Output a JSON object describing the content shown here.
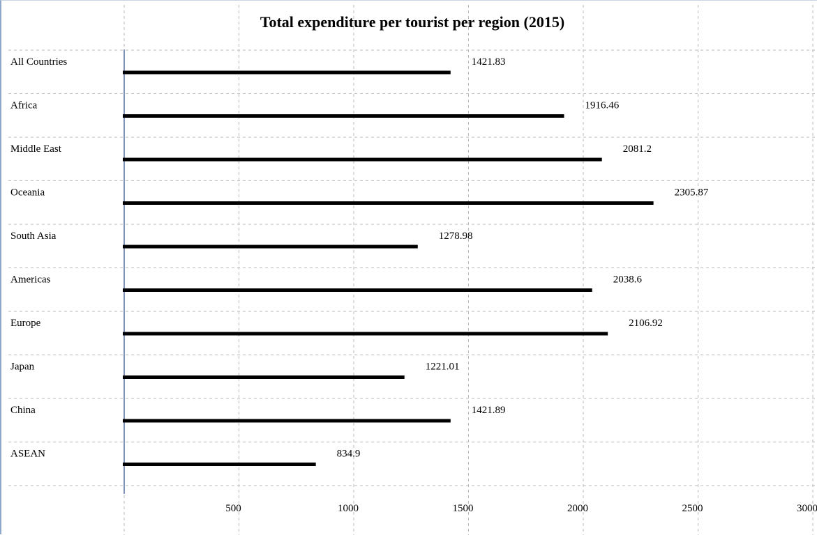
{
  "chart_data": {
    "type": "bar",
    "orientation": "horizontal",
    "title": "Total expenditure per tourist per region (2015)",
    "xlabel": "",
    "ylabel": "",
    "categories": [
      "All Countries",
      "Africa",
      "Middle East",
      "Oceania",
      "South Asia",
      "Americas",
      "Europe",
      "Japan",
      "China",
      "ASEAN"
    ],
    "values": [
      1421.83,
      1916.46,
      2081.2,
      2305.87,
      1278.98,
      2038.6,
      2106.92,
      1221.01,
      1421.89,
      834.9
    ],
    "value_labels": [
      "1421.83",
      "1916.46",
      "2081.2",
      "2305.87",
      "1278.98",
      "2038.6",
      "2106.92",
      "1221.01",
      "1421.89",
      "834.9"
    ],
    "xlim": [
      0,
      3000
    ],
    "xticks": [
      500,
      1000,
      1500,
      2000,
      2500,
      3000
    ],
    "xtick_labels": [
      "500",
      "1000",
      "1500",
      "2000",
      "2500",
      "3000"
    ],
    "grid": true,
    "legend": "none",
    "colors": {
      "bar": "#000000",
      "grid": "#b8b8b8",
      "axis": "#7f94b8"
    }
  }
}
